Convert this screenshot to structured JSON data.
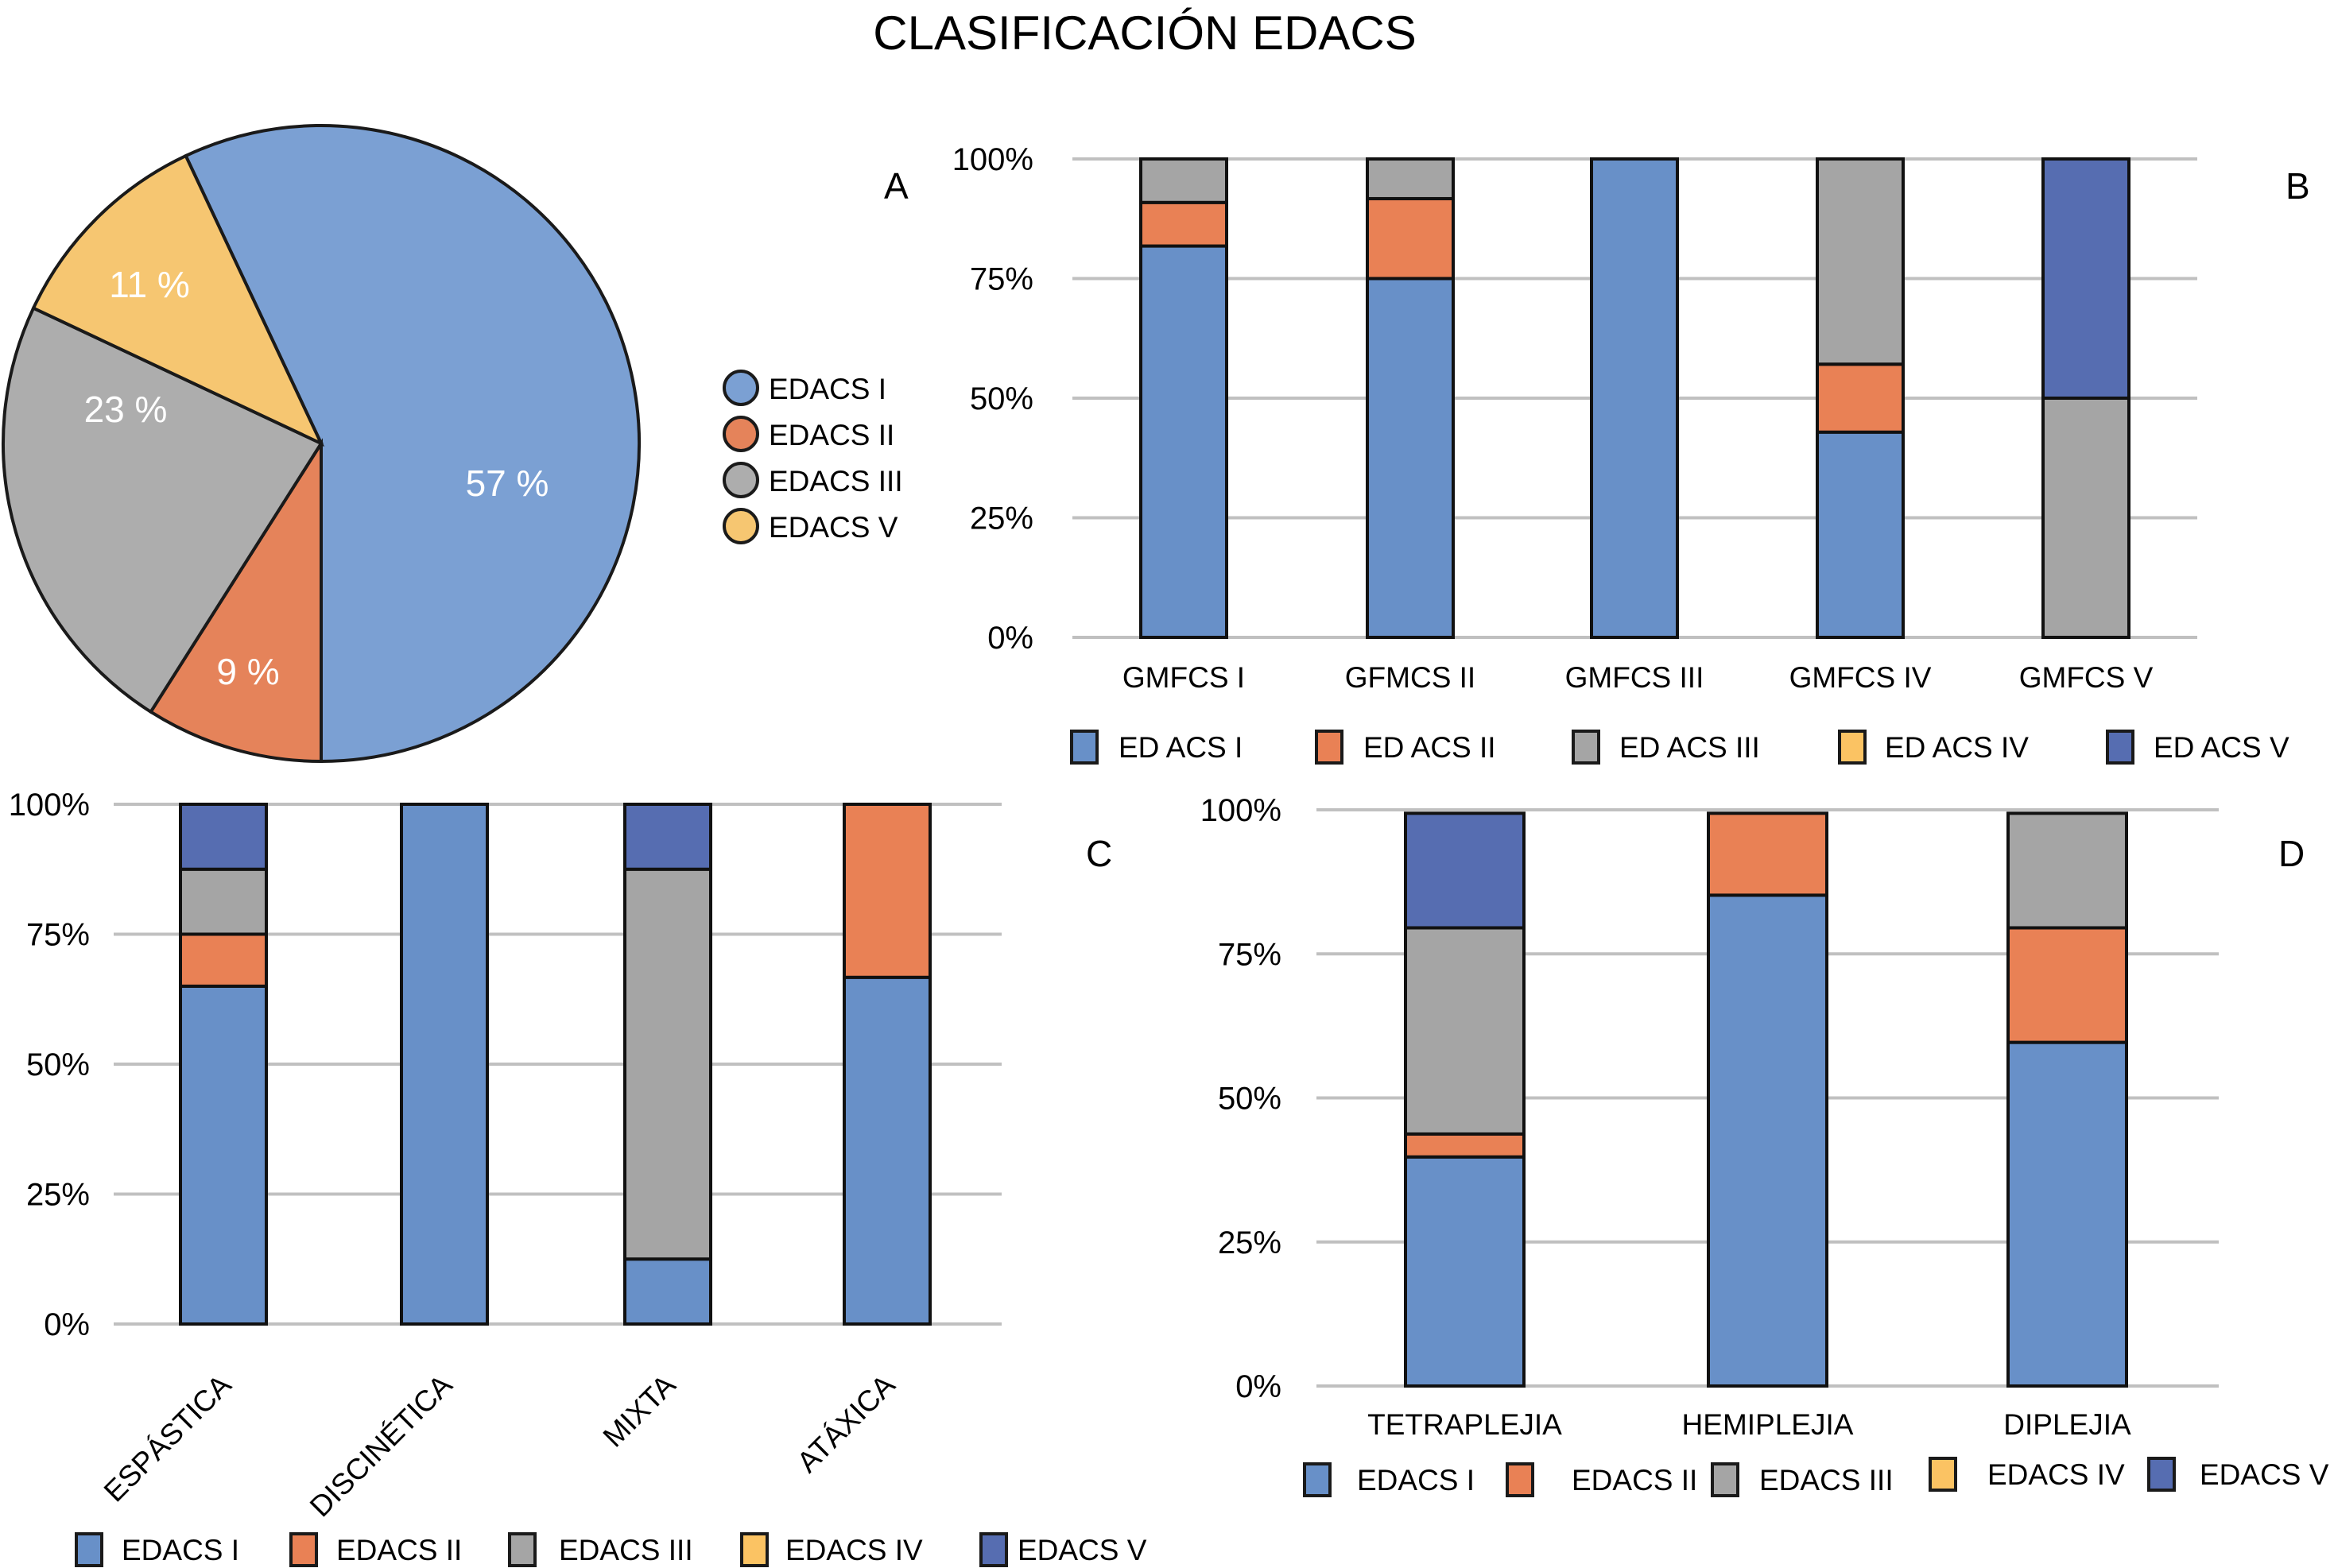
{
  "title": "CLASIFICACIÓN EDACS",
  "colors": {
    "EDACS I": "#6890C8",
    "EDACS II": "#E98155",
    "EDACS III": "#A5A5A5",
    "EDACS IV": "#FBC363",
    "EDACS V": "#566DB1",
    "pie_EDACS I": "#7BA0D3",
    "pie_EDACS II": "#E5835A",
    "pie_EDACS III": "#ADADAD",
    "pie_EDACS V": "#F6C671",
    "grid": "#C0C0C0"
  },
  "chart_data": [
    {
      "id": "A",
      "panel_label": "A",
      "type": "pie",
      "title": "",
      "slices": [
        {
          "label": "EDACS I",
          "value": 57,
          "text": "57 %"
        },
        {
          "label": "EDACS II",
          "value": 9,
          "text": "9 %"
        },
        {
          "label": "EDACS III",
          "value": 23,
          "text": "23 %"
        },
        {
          "label": "EDACS V",
          "value": 11,
          "text": "11 %"
        }
      ],
      "legend": [
        "EDACS I",
        "EDACS II",
        "EDACS III",
        "EDACS V"
      ],
      "legend_position": "right"
    },
    {
      "id": "B",
      "panel_label": "B",
      "type": "bar",
      "stacked": "percent",
      "categories": [
        "GMFCS I",
        "GFMCS II",
        "GMFCS III",
        "GMFCS IV",
        "GMFCS V"
      ],
      "series": [
        {
          "name": "EDACS I",
          "legend_text": "ED ACS   I",
          "values": [
            81.8,
            75.0,
            100,
            42.9,
            0
          ]
        },
        {
          "name": "EDACS II",
          "legend_text": "ED ACS II",
          "values": [
            9.1,
            16.7,
            0,
            14.2,
            0
          ]
        },
        {
          "name": "EDACS III",
          "legend_text": "ED ACS III",
          "values": [
            9.1,
            8.3,
            0,
            42.9,
            50
          ]
        },
        {
          "name": "EDACS IV",
          "legend_text": "ED ACS IV",
          "values": [
            0,
            0,
            0,
            0,
            0
          ]
        },
        {
          "name": "EDACS V",
          "legend_text": "ED ACS  V",
          "values": [
            0,
            0,
            0,
            0,
            50
          ]
        }
      ],
      "yticks": [
        "0%",
        "25%",
        "50%",
        "75%",
        "100%"
      ],
      "ylim": [
        0,
        100
      ],
      "grid": true,
      "legend_position": "bottom"
    },
    {
      "id": "C",
      "panel_label": "C",
      "type": "bar",
      "stacked": "percent",
      "categories": [
        "ESPÁSTICA",
        "DISCINÉTICA",
        "MIXTA",
        "ATÁXICA"
      ],
      "series": [
        {
          "name": "EDACS I",
          "legend_text": "EDACS I",
          "values": [
            65.0,
            100,
            12.5,
            66.7
          ]
        },
        {
          "name": "EDACS II",
          "legend_text": "EDACS II",
          "values": [
            10.0,
            0,
            0,
            33.3
          ]
        },
        {
          "name": "EDACS III",
          "legend_text": "EDACS III",
          "values": [
            12.5,
            0,
            75.0,
            0
          ]
        },
        {
          "name": "EDACS IV",
          "legend_text": "EDACS IV",
          "values": [
            0,
            0,
            0,
            0
          ]
        },
        {
          "name": "EDACS V",
          "legend_text": "EDACS V",
          "values": [
            12.5,
            0,
            12.5,
            0
          ]
        }
      ],
      "yticks": [
        "0%",
        "25%",
        "50%",
        "75%",
        "100%"
      ],
      "ylim": [
        0,
        100
      ],
      "grid": true,
      "xtick_rotation": -45,
      "legend_position": "bottom"
    },
    {
      "id": "D",
      "panel_label": "D",
      "type": "bar",
      "stacked": "percent",
      "categories": [
        "TETRAPLEJIA",
        "HEMIPLEJIA",
        "DIPLEJIA"
      ],
      "series": [
        {
          "name": "EDACS I",
          "legend_text": "EDACS I",
          "values": [
            40,
            85.7,
            60
          ]
        },
        {
          "name": "EDACS II",
          "legend_text": "EDACS II",
          "values": [
            4,
            14.3,
            20
          ]
        },
        {
          "name": "EDACS III",
          "legend_text": "EDACS III",
          "values": [
            36,
            0,
            20
          ]
        },
        {
          "name": "EDACS IV",
          "legend_text": "EDACS IV",
          "values": [
            0,
            0,
            0
          ]
        },
        {
          "name": "EDACS V",
          "legend_text": "EDACS V",
          "values": [
            20,
            0,
            0
          ]
        }
      ],
      "yticks": [
        "0%",
        "25%",
        "50%",
        "75%",
        "100%"
      ],
      "ylim": [
        0,
        100
      ],
      "grid": true,
      "legend_position": "bottom"
    }
  ]
}
